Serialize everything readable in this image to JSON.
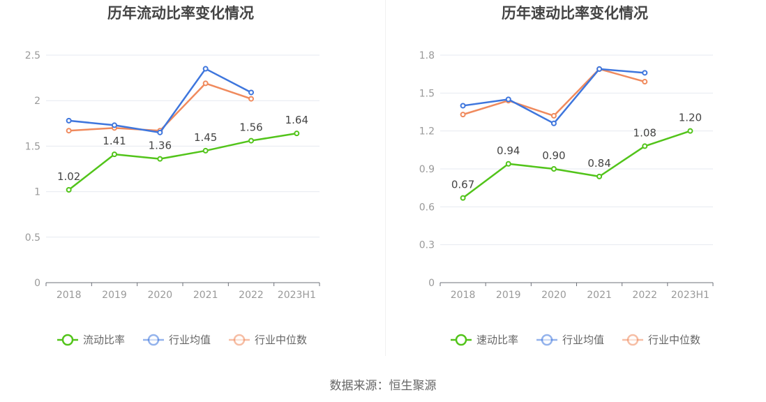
{
  "chart_data": [
    {
      "type": "line",
      "title": "历年流动比率变化情况",
      "categories": [
        "2018",
        "2019",
        "2020",
        "2021",
        "2022",
        "2023H1"
      ],
      "ylim": [
        0,
        2.5
      ],
      "yticks": [
        0,
        0.5,
        1,
        1.5,
        2,
        2.5
      ],
      "ytick_labels": [
        "0",
        "0.5",
        "1",
        "1.5",
        "2",
        "2.5"
      ],
      "series": [
        {
          "name": "流动比率",
          "color": "#52c41a",
          "values": [
            1.02,
            1.41,
            1.36,
            1.45,
            1.56,
            1.64
          ],
          "labels": [
            "1.02",
            "1.41",
            "1.36",
            "1.45",
            "1.56",
            "1.64"
          ]
        },
        {
          "name": "行业均值",
          "color": "#3e76dd",
          "values": [
            1.78,
            1.73,
            1.65,
            2.35,
            2.09,
            null
          ]
        },
        {
          "name": "行业中位数",
          "color": "#f08a5d",
          "values": [
            1.67,
            1.7,
            1.67,
            2.19,
            2.02,
            null
          ]
        }
      ],
      "legend_position": "bottom-center"
    },
    {
      "type": "line",
      "title": "历年速动比率变化情况",
      "categories": [
        "2018",
        "2019",
        "2020",
        "2021",
        "2022",
        "2023H1"
      ],
      "ylim": [
        0,
        1.8
      ],
      "yticks": [
        0,
        0.3,
        0.6,
        0.9,
        1.2,
        1.5,
        1.8
      ],
      "ytick_labels": [
        "0",
        "0.3",
        "0.6",
        "0.9",
        "1.2",
        "1.5",
        "1.8"
      ],
      "series": [
        {
          "name": "速动比率",
          "color": "#52c41a",
          "values": [
            0.67,
            0.94,
            0.9,
            0.84,
            1.08,
            1.2
          ],
          "labels": [
            "0.67",
            "0.94",
            "0.90",
            "0.84",
            "1.08",
            "1.20"
          ]
        },
        {
          "name": "行业均值",
          "color": "#3e76dd",
          "values": [
            1.4,
            1.45,
            1.26,
            1.69,
            1.66,
            null
          ]
        },
        {
          "name": "行业中位数",
          "color": "#f08a5d",
          "values": [
            1.33,
            1.44,
            1.32,
            1.69,
            1.59,
            null
          ]
        }
      ],
      "legend_position": "bottom-center"
    }
  ],
  "footer": {
    "source": "数据来源：恒生聚源"
  },
  "colors": {
    "grid": "#e6e9f0",
    "axis": "#6e7079",
    "tick_text": "#999999",
    "title": "#444444"
  }
}
